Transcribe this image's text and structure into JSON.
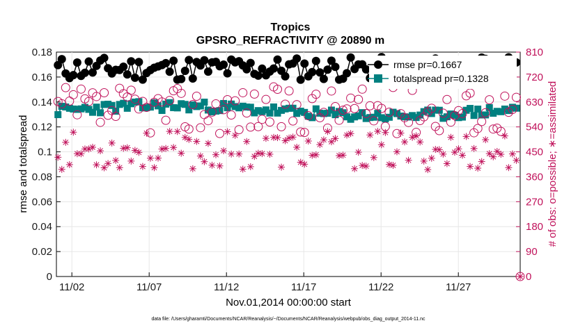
{
  "chart_data": {
    "type": "line",
    "title": "Tropics",
    "subtitle": "GPSRO_REFRACTIVITY @ 20890 m",
    "xlabel": "Nov.01,2014 00:00:00 start",
    "ylabel_left": "rmse and totalspread",
    "ylabel_right": "# of obs: o=possible; ∗=assimilated",
    "footnote": "data file: /Users/gharamti/Documents/NCAR/Reanalysis/~/Documents/NCAR/Reanalysis/webpub/obs_diag_output_2014-11.nc",
    "x_tick_labels": [
      "11/02",
      "11/07",
      "11/12",
      "11/17",
      "11/22",
      "11/27"
    ],
    "x_tick_days": [
      2,
      7,
      12,
      17,
      22,
      27
    ],
    "xlim_days": [
      1,
      31
    ],
    "ylim_left": [
      0,
      0.18
    ],
    "y_left_ticks": [
      0,
      0.02,
      0.04,
      0.06,
      0.08,
      0.1,
      0.12,
      0.14,
      0.16,
      0.18
    ],
    "y_left_tick_labels": [
      "0",
      "0.02",
      "0.04",
      "0.06",
      "0.08",
      "0.1",
      "0.12",
      "0.14",
      "0.16",
      "0.18"
    ],
    "ylim_right": [
      0,
      810
    ],
    "y_right_ticks": [
      0,
      90,
      180,
      270,
      360,
      450,
      540,
      630,
      720,
      810
    ],
    "y_right_tick_labels": [
      "0",
      "90",
      "180",
      "270",
      "360",
      "450",
      "540",
      "630",
      "720",
      "810"
    ],
    "legend": [
      {
        "name": "rmse pr=0.1667",
        "visible_text": "rmse pr=0.1667"
      },
      {
        "name": "totalspread pr=0.1328",
        "visible_text": "totalspread pr=0.1328"
      }
    ],
    "colors": {
      "rmse": "#000000",
      "totalspread": "#008080",
      "obs": "#c0115a"
    },
    "series": [
      {
        "name": "rmse",
        "axis": "left",
        "marker": "filled-circle",
        "generator": {
          "base": 0.1667,
          "amp": 0.0095,
          "seed": 11
        }
      },
      {
        "name": "totalspread",
        "axis": "left",
        "marker": "filled-square",
        "generator": {
          "base": 0.1328,
          "amp": 0.004,
          "seed": 23
        }
      },
      {
        "name": "possible",
        "axis": "right",
        "marker": "open-circle",
        "generator": {
          "base": 600,
          "amp": 85,
          "seed": 37
        }
      },
      {
        "name": "assimilated",
        "axis": "right",
        "marker": "asterisk",
        "generator": {
          "base": 455,
          "amp": 70,
          "seed": 53
        }
      }
    ],
    "n_points": 120,
    "outlier_note": "asterisk at x-end on right axis marks 0"
  }
}
